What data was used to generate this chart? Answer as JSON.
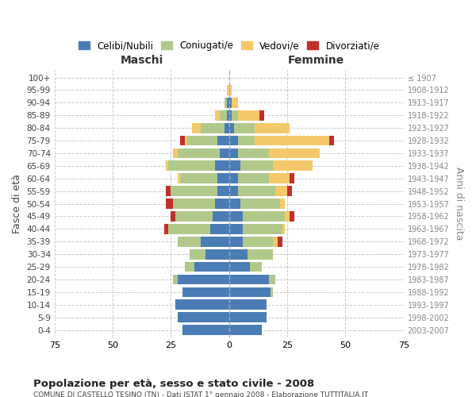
{
  "age_groups": [
    "0-4",
    "5-9",
    "10-14",
    "15-19",
    "20-24",
    "25-29",
    "30-34",
    "35-39",
    "40-44",
    "45-49",
    "50-54",
    "55-59",
    "60-64",
    "65-69",
    "70-74",
    "75-79",
    "80-84",
    "85-89",
    "90-94",
    "95-99",
    "100+"
  ],
  "birth_years": [
    "2003-2007",
    "1998-2002",
    "1993-1997",
    "1988-1992",
    "1983-1987",
    "1978-1982",
    "1973-1977",
    "1968-1972",
    "1963-1967",
    "1958-1962",
    "1953-1957",
    "1948-1952",
    "1943-1947",
    "1938-1942",
    "1933-1937",
    "1928-1932",
    "1923-1927",
    "1918-1922",
    "1913-1917",
    "1908-1912",
    "≤ 1907"
  ],
  "colors": {
    "celibi": "#4A7DB5",
    "coniugati": "#B0C98A",
    "vedovi": "#F5C96A",
    "divorziati": "#C0302A"
  },
  "maschi": {
    "celibi": [
      20,
      22,
      23,
      20,
      22,
      15,
      10,
      12,
      8,
      7,
      6,
      5,
      5,
      6,
      4,
      5,
      2,
      1,
      1,
      0,
      0
    ],
    "coniugati": [
      0,
      0,
      0,
      0,
      2,
      4,
      7,
      10,
      18,
      16,
      18,
      20,
      16,
      20,
      18,
      13,
      10,
      3,
      1,
      0,
      0
    ],
    "vedovi": [
      0,
      0,
      0,
      0,
      0,
      0,
      0,
      0,
      0,
      0,
      0,
      0,
      1,
      1,
      2,
      1,
      4,
      2,
      0,
      1,
      0
    ],
    "divorziati": [
      0,
      0,
      0,
      0,
      0,
      0,
      0,
      0,
      2,
      2,
      3,
      2,
      0,
      0,
      0,
      2,
      0,
      0,
      0,
      0,
      0
    ]
  },
  "femmine": {
    "celibi": [
      14,
      16,
      16,
      18,
      17,
      9,
      8,
      6,
      6,
      6,
      5,
      4,
      4,
      5,
      4,
      4,
      2,
      1,
      1,
      0,
      0
    ],
    "coniugati": [
      0,
      0,
      0,
      1,
      3,
      5,
      11,
      13,
      17,
      18,
      17,
      16,
      13,
      14,
      13,
      7,
      9,
      3,
      0,
      0,
      0
    ],
    "vedovi": [
      0,
      0,
      0,
      0,
      0,
      0,
      0,
      2,
      1,
      2,
      2,
      5,
      9,
      17,
      22,
      32,
      15,
      9,
      3,
      1,
      0
    ],
    "divorziati": [
      0,
      0,
      0,
      0,
      0,
      0,
      0,
      2,
      0,
      2,
      0,
      2,
      2,
      0,
      0,
      2,
      0,
      2,
      0,
      0,
      0
    ]
  },
  "title": "Popolazione per età, sesso e stato civile - 2008",
  "subtitle": "COMUNE DI CASTELLO TESINO (TN) - Dati ISTAT 1° gennaio 2008 - Elaborazione TUTTITALIA.IT",
  "xlabel_left": "Maschi",
  "xlabel_right": "Femmine",
  "ylabel_left": "Fasce di età",
  "ylabel_right": "Anni di nascita",
  "xlim": 75,
  "legend_labels": [
    "Celibi/Nubili",
    "Coniugati/e",
    "Vedovi/e",
    "Divorziati/e"
  ],
  "bg_color": "#FFFFFF",
  "grid_color": "#CCCCCC",
  "bar_height": 0.8
}
